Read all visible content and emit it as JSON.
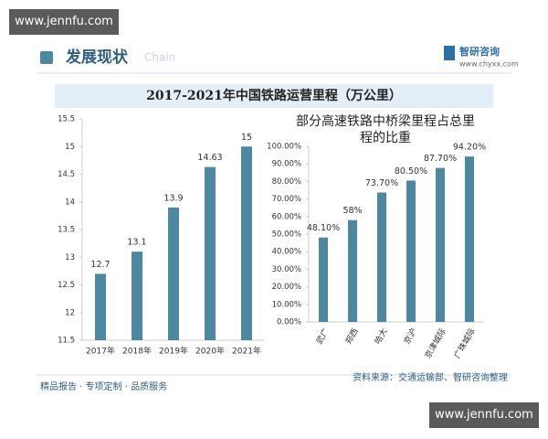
{
  "badge_top": "www.jennfu.com",
  "header": {
    "title": "发展现状",
    "subtitle": "Chain",
    "logo": "智研咨询",
    "logo_url": "www.chyxx.com"
  },
  "banner": "2017-2021年中国铁路运营里程（万公里）",
  "chart_data": [
    {
      "type": "bar",
      "categories": [
        "2017年",
        "2018年",
        "2019年",
        "2020年",
        "2021年"
      ],
      "values": [
        12.7,
        13.1,
        13.9,
        14.63,
        15
      ],
      "color": "#4d87a0",
      "ylim": [
        11.5,
        15.5
      ],
      "yticks": [
        11.5,
        12,
        12.5,
        13,
        13.5,
        14,
        14.5,
        15,
        15.5
      ],
      "grid": false
    },
    {
      "type": "bar",
      "title": "部分高速铁路中桥梁里程占总里程的比重",
      "categories": [
        "武广",
        "郑西",
        "哈大",
        "京沪",
        "京津城际",
        "广珠城际"
      ],
      "values": [
        48.1,
        58,
        73.7,
        80.5,
        87.7,
        94.2
      ],
      "value_labels": [
        "48.10%",
        "58%",
        "73.70%",
        "80.50%",
        "87.70%",
        "94.20%"
      ],
      "color": "#4d87a0",
      "ylim": [
        0,
        100
      ],
      "yticks": [
        {
          "value": 0,
          "label": "0.00%"
        },
        {
          "value": 10,
          "label": "10.00%"
        },
        {
          "value": 20,
          "label": "20.00%"
        },
        {
          "value": 30,
          "label": "30.00%"
        },
        {
          "value": 40,
          "label": "40.00%"
        },
        {
          "value": 50,
          "label": "50.00%"
        },
        {
          "value": 60,
          "label": "60.00%"
        },
        {
          "value": 70,
          "label": "70.00%"
        },
        {
          "value": 80,
          "label": "80.00%"
        },
        {
          "value": 90,
          "label": "90.00%"
        },
        {
          "value": 100,
          "label": "100.00%"
        }
      ],
      "grid": false
    }
  ],
  "footer": {
    "left": "精品报告 · 专项定制 · 品质服务",
    "right": "资料来源：交通运输部、智研咨询整理"
  },
  "badge_bottom": "www.jennfu.com"
}
